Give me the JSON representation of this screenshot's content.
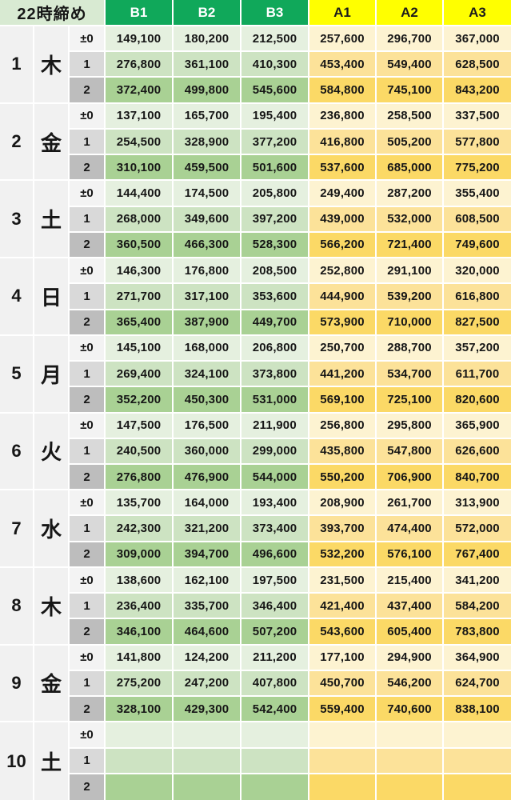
{
  "title": "22時締め",
  "columns": [
    "B1",
    "B2",
    "B3",
    "A1",
    "A2",
    "A3"
  ],
  "row_labels": [
    "±0",
    "1",
    "2"
  ],
  "colors": {
    "border": "#ffffff",
    "title_bg": "#d8ead2",
    "b_header_bg": "#10a85a",
    "a_header_bg": "#ffff00",
    "index_bg": "#f1f1f1",
    "label_bg": [
      "#f3f3f3",
      "#d9d9d9",
      "#bdbdbd"
    ],
    "b_row_bg": [
      "#e5f0df",
      "#cde3c2",
      "#a9d194"
    ],
    "a_row_bg": [
      "#fdf3d1",
      "#fce299",
      "#fbd966"
    ]
  },
  "groups": [
    {
      "num": "1",
      "day": "木",
      "rows": [
        [
          "149,100",
          "180,200",
          "212,500",
          "257,600",
          "296,700",
          "367,000"
        ],
        [
          "276,800",
          "361,100",
          "410,300",
          "453,400",
          "549,400",
          "628,500"
        ],
        [
          "372,400",
          "499,800",
          "545,600",
          "584,800",
          "745,100",
          "843,200"
        ]
      ]
    },
    {
      "num": "2",
      "day": "金",
      "rows": [
        [
          "137,100",
          "165,700",
          "195,400",
          "236,800",
          "258,500",
          "337,500"
        ],
        [
          "254,500",
          "328,900",
          "377,200",
          "416,800",
          "505,200",
          "577,800"
        ],
        [
          "310,100",
          "459,500",
          "501,600",
          "537,600",
          "685,000",
          "775,200"
        ]
      ]
    },
    {
      "num": "3",
      "day": "土",
      "rows": [
        [
          "144,400",
          "174,500",
          "205,800",
          "249,400",
          "287,200",
          "355,400"
        ],
        [
          "268,000",
          "349,600",
          "397,200",
          "439,000",
          "532,000",
          "608,500"
        ],
        [
          "360,500",
          "466,300",
          "528,300",
          "566,200",
          "721,400",
          "749,600"
        ]
      ]
    },
    {
      "num": "4",
      "day": "日",
      "rows": [
        [
          "146,300",
          "176,800",
          "208,500",
          "252,800",
          "291,100",
          "320,000"
        ],
        [
          "271,700",
          "317,100",
          "353,600",
          "444,900",
          "539,200",
          "616,800"
        ],
        [
          "365,400",
          "387,900",
          "449,700",
          "573,900",
          "710,000",
          "827,500"
        ]
      ]
    },
    {
      "num": "5",
      "day": "月",
      "rows": [
        [
          "145,100",
          "168,000",
          "206,800",
          "250,700",
          "288,700",
          "357,200"
        ],
        [
          "269,400",
          "324,100",
          "373,800",
          "441,200",
          "534,700",
          "611,700"
        ],
        [
          "352,200",
          "450,300",
          "531,000",
          "569,100",
          "725,100",
          "820,600"
        ]
      ]
    },
    {
      "num": "6",
      "day": "火",
      "rows": [
        [
          "147,500",
          "176,500",
          "211,900",
          "256,800",
          "295,800",
          "365,900"
        ],
        [
          "240,500",
          "360,000",
          "299,000",
          "435,800",
          "547,800",
          "626,600"
        ],
        [
          "276,800",
          "476,900",
          "544,000",
          "550,200",
          "706,900",
          "840,700"
        ]
      ]
    },
    {
      "num": "7",
      "day": "水",
      "rows": [
        [
          "135,700",
          "164,000",
          "193,400",
          "208,900",
          "261,700",
          "313,900"
        ],
        [
          "242,300",
          "321,200",
          "373,400",
          "393,700",
          "474,400",
          "572,000"
        ],
        [
          "309,000",
          "394,700",
          "496,600",
          "532,200",
          "576,100",
          "767,400"
        ]
      ]
    },
    {
      "num": "8",
      "day": "木",
      "rows": [
        [
          "138,600",
          "162,100",
          "197,500",
          "231,500",
          "215,400",
          "341,200"
        ],
        [
          "236,400",
          "335,700",
          "346,400",
          "421,400",
          "437,400",
          "584,200"
        ],
        [
          "346,100",
          "464,600",
          "507,200",
          "543,600",
          "605,400",
          "783,800"
        ]
      ]
    },
    {
      "num": "9",
      "day": "金",
      "rows": [
        [
          "141,800",
          "124,200",
          "211,200",
          "177,100",
          "294,900",
          "364,900"
        ],
        [
          "275,200",
          "247,200",
          "407,800",
          "450,700",
          "546,200",
          "624,700"
        ],
        [
          "328,100",
          "429,300",
          "542,400",
          "559,400",
          "740,600",
          "838,100"
        ]
      ]
    },
    {
      "num": "10",
      "day": "土",
      "rows": [
        [
          "",
          "",
          "",
          "",
          "",
          ""
        ],
        [
          "",
          "",
          "",
          "",
          "",
          ""
        ],
        [
          "",
          "",
          "",
          "",
          "",
          ""
        ]
      ]
    }
  ]
}
